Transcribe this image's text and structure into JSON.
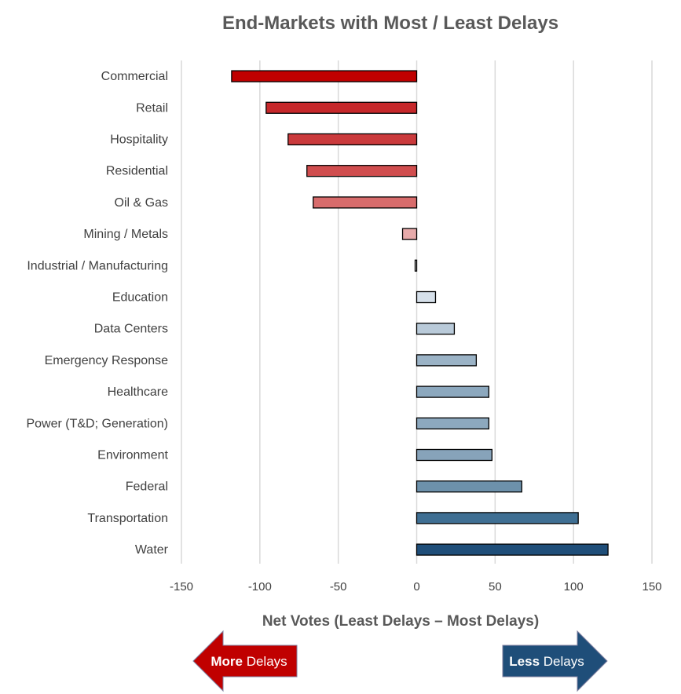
{
  "chart_data": {
    "type": "bar",
    "orientation": "horizontal",
    "title": "End-Markets with Most / Least Delays",
    "xlabel": "Net Votes (Least Delays – Most Delays)",
    "ylabel": "",
    "xlim": [
      -150,
      150
    ],
    "xticks": [
      -150,
      -100,
      -50,
      0,
      50,
      100,
      150
    ],
    "grid": true,
    "categories": [
      "Commercial",
      "Retail",
      "Hospitality",
      "Residential",
      "Oil & Gas",
      "Mining / Metals",
      "Industrial / Manufacturing",
      "Education",
      "Data Centers",
      "Emergency Response",
      "Healthcare",
      "Power (T&D; Generation)",
      "Environment",
      "Federal",
      "Transportation",
      "Water"
    ],
    "values": [
      -118,
      -96,
      -82,
      -70,
      -66,
      -9,
      -1,
      12,
      24,
      38,
      46,
      46,
      48,
      67,
      103,
      122
    ],
    "colors": [
      "#C00000",
      "#C6282B",
      "#CA3A3C",
      "#D04D4E",
      "#D86C6C",
      "#E7AAAA",
      "#EAEAEA",
      "#D6E0EA",
      "#B9CAD9",
      "#9BB3C6",
      "#8CA8BE",
      "#8CA8BE",
      "#87A3BA",
      "#6D91AB",
      "#3F6F93",
      "#1F4E79"
    ]
  },
  "annotations": {
    "more_delays": {
      "strong": "More",
      "rest": " Delays",
      "color": "#C00000"
    },
    "less_delays": {
      "strong": "Less",
      "rest": " Delays",
      "color": "#1F4E79"
    }
  }
}
